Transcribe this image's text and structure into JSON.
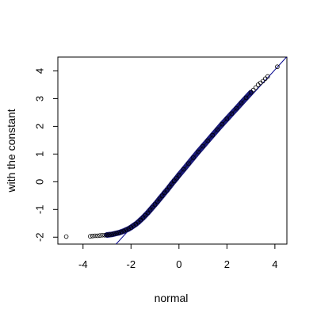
{
  "chart_data": {
    "type": "scatter",
    "title": "",
    "xlabel": "normal",
    "ylabel": "with the constant",
    "xlim": [
      -5.05,
      4.5
    ],
    "ylim": [
      -2.25,
      4.5
    ],
    "x_ticks": [
      -4,
      -2,
      0,
      2,
      4
    ],
    "x_tick_labels": [
      "-4",
      "-2",
      "0",
      "2",
      "4"
    ],
    "y_ticks": [
      -2,
      -1,
      0,
      1,
      2,
      3,
      4
    ],
    "y_tick_labels": [
      "-2",
      "-1",
      "0",
      "1",
      "2",
      "3",
      "4"
    ],
    "grid": false,
    "legend": "none",
    "colors": {
      "points": "#000000",
      "reference_line": "#00008b",
      "dense_band": "#1a1a7a"
    },
    "series": [
      {
        "marker": "open-circle",
        "x": [
          -4.7,
          -3.7,
          -3.6,
          -3.5,
          -3.4,
          -3.3,
          -3.2,
          -3.1,
          -3.0,
          -2.9,
          -2.8,
          -2.7,
          -2.6,
          -2.5,
          -2.4,
          -2.3,
          -2.2,
          -2.1,
          -2.0,
          -1.9,
          -1.8,
          -1.7,
          -1.6,
          -1.5,
          -1.4,
          -1.3,
          -1.2,
          -1.1,
          -1.0,
          -0.9,
          -0.8,
          -0.7,
          -0.6,
          -0.5,
          -0.4,
          -0.3,
          -0.2,
          -0.1,
          0.0,
          0.2,
          0.4,
          0.6,
          0.8,
          1.0,
          1.2,
          1.4,
          1.6,
          1.8,
          2.0,
          2.2,
          2.4,
          2.6,
          2.8,
          3.0,
          3.1,
          3.2,
          3.3,
          3.4,
          3.5,
          3.6,
          3.7,
          4.1
        ],
        "y": [
          -1.98,
          -1.97,
          -1.96,
          -1.95,
          -1.95,
          -1.94,
          -1.93,
          -1.93,
          -1.92,
          -1.91,
          -1.9,
          -1.88,
          -1.86,
          -1.84,
          -1.81,
          -1.78,
          -1.74,
          -1.7,
          -1.65,
          -1.59,
          -1.53,
          -1.46,
          -1.38,
          -1.3,
          -1.21,
          -1.12,
          -1.02,
          -0.92,
          -0.82,
          -0.72,
          -0.61,
          -0.51,
          -0.4,
          -0.3,
          -0.19,
          -0.08,
          0.03,
          0.13,
          0.24,
          0.45,
          0.66,
          0.87,
          1.08,
          1.28,
          1.48,
          1.68,
          1.88,
          2.08,
          2.27,
          2.46,
          2.65,
          2.84,
          3.03,
          3.22,
          3.31,
          3.4,
          3.5,
          3.57,
          3.63,
          3.72,
          3.8,
          4.15
        ]
      }
    ],
    "reference_line": {
      "intercept": 0.24,
      "slope": 0.95
    }
  }
}
